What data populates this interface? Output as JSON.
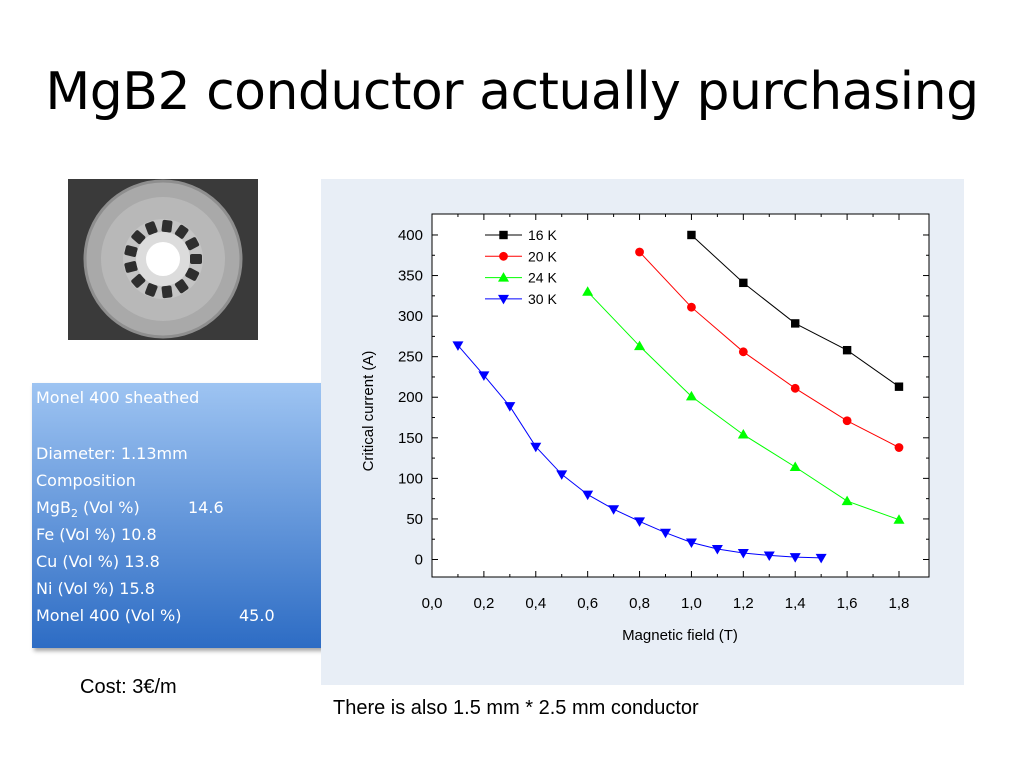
{
  "slide": {
    "title": "MgB2 conductor actually purchasing",
    "cost": "Cost: 3€/m",
    "note": "There is also 1.5 mm * 2.5 mm conductor"
  },
  "spec": {
    "sheath": "Monel 400 sheathed",
    "diameter": "Diameter: 1.13mm",
    "composition": "Composition",
    "mgb2_label_a": "MgB",
    "mgb2_label_sub": "2",
    "mgb2_label_b": " (Vol %)",
    "mgb2_value": "14.6",
    "fe": "Fe (Vol %)  10.8",
    "cu": "Cu (Vol %)  13.8",
    "ni": "Ni (Vol %)  15.8",
    "monel_label": "Monel 400 (Vol %)",
    "monel_value": "45.0"
  },
  "colors": {
    "spec_top": "#9ec4f2",
    "spec_bottom": "#2d6cc4",
    "chart_panel": "#e8eef6"
  },
  "chart_data": {
    "type": "line",
    "xlabel": "Magnetic field (T)",
    "ylabel": "Critical current (A)",
    "xlim": [
      0,
      1.8
    ],
    "ylim": [
      0,
      400
    ],
    "xticks": [
      "0,0",
      "0,2",
      "0,4",
      "0,6",
      "0,8",
      "1,0",
      "1,2",
      "1,4",
      "1,6",
      "1,8"
    ],
    "yticks": [
      "0",
      "50",
      "100",
      "150",
      "200",
      "250",
      "300",
      "350",
      "400"
    ],
    "legend": "top-left",
    "series": [
      {
        "name": "16 K",
        "color": "#000000",
        "marker": "square",
        "x": [
          1.0,
          1.2,
          1.4,
          1.6,
          1.8
        ],
        "y": [
          400,
          341,
          291,
          258,
          213
        ]
      },
      {
        "name": "20 K",
        "color": "#ff0000",
        "marker": "circle",
        "x": [
          0.8,
          1.0,
          1.2,
          1.4,
          1.6,
          1.8
        ],
        "y": [
          379,
          311,
          256,
          211,
          171,
          138
        ]
      },
      {
        "name": "24 K",
        "color": "#00ff00",
        "marker": "triangle-up",
        "x": [
          0.6,
          0.8,
          1.0,
          1.2,
          1.4,
          1.6,
          1.8
        ],
        "y": [
          330,
          263,
          201,
          154,
          114,
          72,
          49
        ]
      },
      {
        "name": "30 K",
        "color": "#0000ff",
        "marker": "triangle-down",
        "x": [
          0.1,
          0.2,
          0.3,
          0.4,
          0.5,
          0.6,
          0.7,
          0.8,
          0.9,
          1.0,
          1.1,
          1.2,
          1.3,
          1.4,
          1.5
        ],
        "y": [
          264,
          227,
          189,
          139,
          105,
          80,
          62,
          47,
          33,
          21,
          13,
          8,
          5,
          3,
          2
        ]
      }
    ]
  }
}
